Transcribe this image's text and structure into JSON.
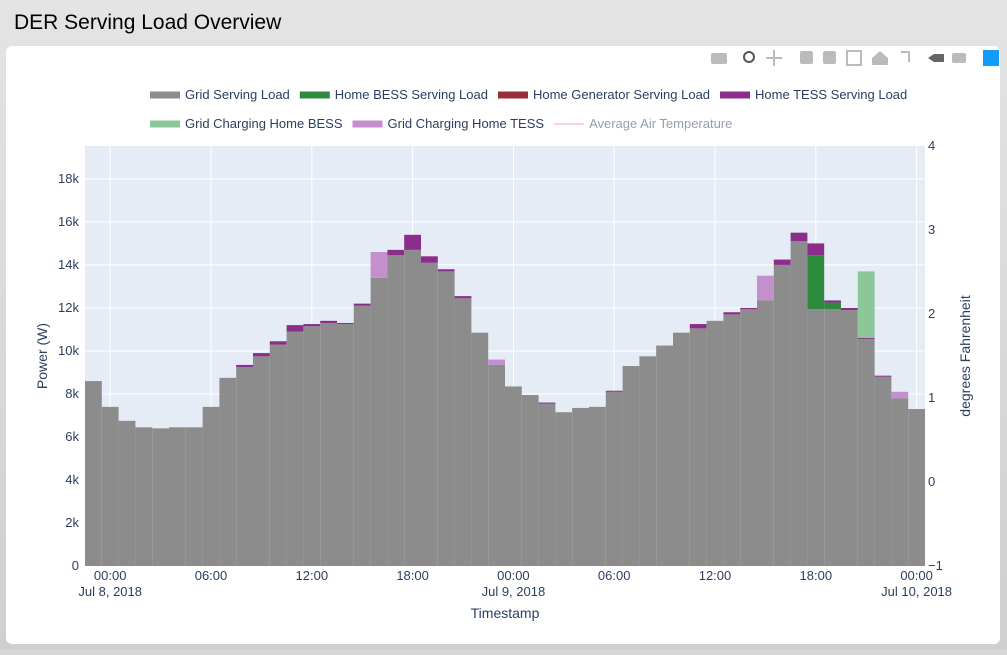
{
  "header": {
    "title": "DER Serving Load Overview"
  },
  "chart_data": {
    "type": "bar",
    "barmode": "stack",
    "x_label": "Timestamp",
    "y_label": "Power (W)",
    "y2_label": "degrees Fahrenheit",
    "x": [
      "2018-07-07 23:00",
      "2018-07-08 00:00",
      "2018-07-08 01:00",
      "2018-07-08 02:00",
      "2018-07-08 03:00",
      "2018-07-08 04:00",
      "2018-07-08 05:00",
      "2018-07-08 06:00",
      "2018-07-08 07:00",
      "2018-07-08 08:00",
      "2018-07-08 09:00",
      "2018-07-08 10:00",
      "2018-07-08 11:00",
      "2018-07-08 12:00",
      "2018-07-08 13:00",
      "2018-07-08 14:00",
      "2018-07-08 15:00",
      "2018-07-08 16:00",
      "2018-07-08 17:00",
      "2018-07-08 18:00",
      "2018-07-08 19:00",
      "2018-07-08 20:00",
      "2018-07-08 21:00",
      "2018-07-08 22:00",
      "2018-07-08 23:00",
      "2018-07-09 00:00",
      "2018-07-09 01:00",
      "2018-07-09 02:00",
      "2018-07-09 03:00",
      "2018-07-09 04:00",
      "2018-07-09 05:00",
      "2018-07-09 06:00",
      "2018-07-09 07:00",
      "2018-07-09 08:00",
      "2018-07-09 09:00",
      "2018-07-09 10:00",
      "2018-07-09 11:00",
      "2018-07-09 12:00",
      "2018-07-09 13:00",
      "2018-07-09 14:00",
      "2018-07-09 15:00",
      "2018-07-09 16:00",
      "2018-07-09 17:00",
      "2018-07-09 18:00",
      "2018-07-09 19:00",
      "2018-07-09 20:00",
      "2018-07-09 21:00",
      "2018-07-09 22:00",
      "2018-07-09 23:00",
      "2018-07-10 00:00"
    ],
    "series": [
      {
        "name": "Grid Serving Load",
        "color": "#8c8c8c",
        "values": [
          8600,
          7400,
          6750,
          6450,
          6400,
          6450,
          6450,
          7400,
          8750,
          9250,
          9750,
          10300,
          10900,
          11150,
          11300,
          11250,
          12100,
          13400,
          14450,
          14700,
          14100,
          13700,
          12450,
          10850,
          9350,
          8350,
          7950,
          7550,
          7150,
          7350,
          7400,
          8100,
          9300,
          9750,
          10250,
          10850,
          11050,
          11400,
          11700,
          11950,
          12350,
          14000,
          15100,
          11950,
          11950,
          11900,
          10550,
          8800,
          7800,
          7300
        ]
      },
      {
        "name": "Home BESS Serving Load",
        "color": "#2e8b3e",
        "values": [
          0,
          0,
          0,
          0,
          0,
          0,
          0,
          0,
          0,
          0,
          0,
          0,
          0,
          0,
          0,
          0,
          0,
          0,
          0,
          0,
          0,
          0,
          0,
          0,
          0,
          0,
          0,
          0,
          0,
          0,
          0,
          0,
          0,
          0,
          0,
          0,
          0,
          0,
          0,
          0,
          0,
          0,
          0,
          2500,
          300,
          0,
          0,
          0,
          0,
          0
        ]
      },
      {
        "name": "Home Generator Serving Load",
        "color": "#9b2f37",
        "values": [
          0,
          0,
          0,
          0,
          0,
          0,
          0,
          0,
          0,
          0,
          0,
          0,
          0,
          0,
          0,
          0,
          0,
          0,
          0,
          0,
          0,
          0,
          0,
          0,
          0,
          0,
          0,
          0,
          0,
          0,
          0,
          0,
          0,
          0,
          0,
          0,
          0,
          0,
          0,
          0,
          0,
          0,
          0,
          0,
          0,
          0,
          0,
          0,
          0,
          0
        ]
      },
      {
        "name": "Home TESS Serving Load",
        "color": "#8b2d8b",
        "values": [
          0,
          0,
          0,
          0,
          0,
          0,
          0,
          0,
          0,
          100,
          150,
          150,
          300,
          100,
          100,
          50,
          100,
          0,
          250,
          700,
          300,
          100,
          100,
          0,
          0,
          0,
          0,
          50,
          0,
          0,
          0,
          50,
          0,
          0,
          0,
          0,
          200,
          0,
          100,
          50,
          0,
          250,
          400,
          550,
          100,
          100,
          50,
          50,
          0,
          0
        ]
      },
      {
        "name": "Grid Charging Home BESS",
        "color": "#8cc79a",
        "values": [
          0,
          0,
          0,
          0,
          0,
          0,
          0,
          0,
          0,
          0,
          0,
          0,
          0,
          0,
          0,
          0,
          0,
          0,
          0,
          0,
          0,
          0,
          0,
          0,
          0,
          0,
          0,
          0,
          0,
          0,
          0,
          0,
          0,
          0,
          0,
          0,
          0,
          0,
          0,
          0,
          0,
          0,
          0,
          0,
          0,
          0,
          3100,
          0,
          0,
          0
        ]
      },
      {
        "name": "Grid Charging Home TESS",
        "color": "#c490cc",
        "values": [
          0,
          0,
          0,
          0,
          0,
          0,
          0,
          0,
          0,
          0,
          0,
          0,
          0,
          0,
          0,
          0,
          0,
          1200,
          0,
          0,
          0,
          0,
          0,
          0,
          250,
          0,
          0,
          0,
          0,
          0,
          0,
          0,
          0,
          0,
          0,
          0,
          0,
          0,
          0,
          0,
          1150,
          0,
          0,
          0,
          0,
          0,
          0,
          0,
          300,
          0
        ]
      },
      {
        "name": "Average Air Temperature",
        "color": "#f4a6b8",
        "axis": "y2",
        "visible": "legendonly"
      }
    ],
    "xlim": [
      "2018-07-07 22:30",
      "2018-07-10 00:30"
    ],
    "xticks": [
      {
        "value": "2018-07-08 00:00",
        "label": "00:00\nJul 8, 2018"
      },
      {
        "value": "2018-07-08 06:00",
        "label": "06:00"
      },
      {
        "value": "2018-07-08 12:00",
        "label": "12:00"
      },
      {
        "value": "2018-07-08 18:00",
        "label": "18:00"
      },
      {
        "value": "2018-07-09 00:00",
        "label": "00:00\nJul 9, 2018"
      },
      {
        "value": "2018-07-09 06:00",
        "label": "06:00"
      },
      {
        "value": "2018-07-09 12:00",
        "label": "12:00"
      },
      {
        "value": "2018-07-09 18:00",
        "label": "18:00"
      },
      {
        "value": "2018-07-10 00:00",
        "label": "00:00\nJul 10, 2018"
      }
    ],
    "ylim": [
      0,
      19530
    ],
    "yticks": [
      0,
      {
        "value": 2000,
        "label": "2k"
      },
      {
        "value": 4000,
        "label": "4k"
      },
      {
        "value": 6000,
        "label": "6k"
      },
      {
        "value": 8000,
        "label": "8k"
      },
      {
        "value": 10000,
        "label": "10k"
      },
      {
        "value": 12000,
        "label": "12k"
      },
      {
        "value": 14000,
        "label": "14k"
      },
      {
        "value": 16000,
        "label": "16k"
      },
      {
        "value": 18000,
        "label": "18k"
      }
    ],
    "y2lim": [
      -1,
      4
    ],
    "y2ticks": [
      {
        "value": -1,
        "label": "−1"
      },
      0,
      1,
      2,
      3,
      4
    ],
    "grid": true
  }
}
